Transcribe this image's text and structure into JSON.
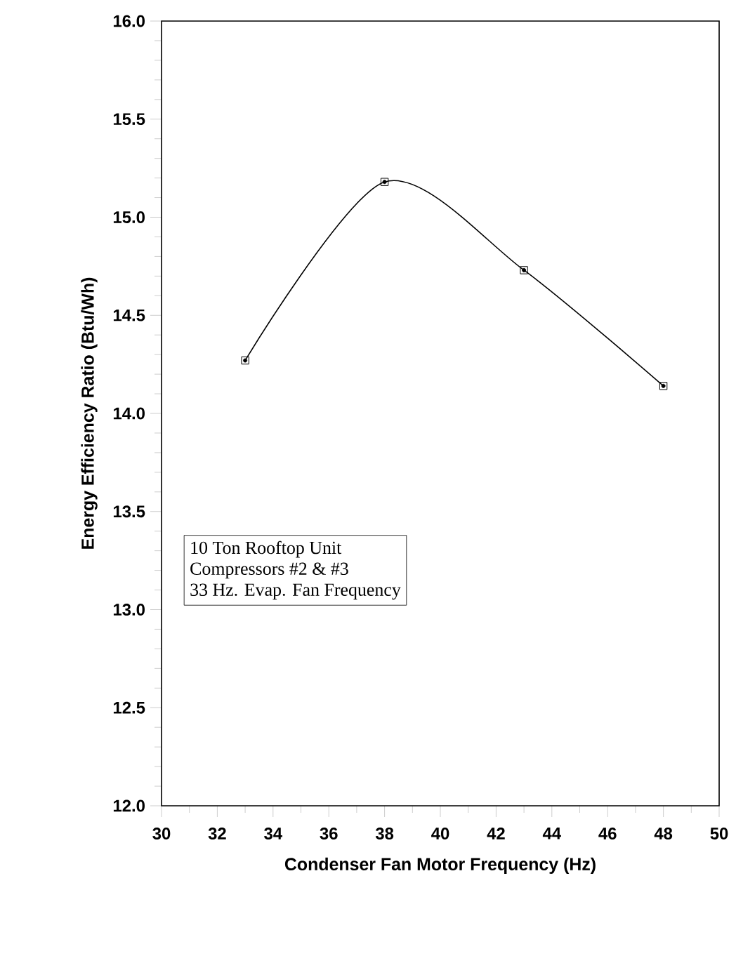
{
  "chart_data": {
    "type": "line",
    "xlabel": "Condenser Fan Motor Frequency (Hz)",
    "ylabel": "Energy Efficiency Ratio (Btu/Wh)",
    "x": [
      33,
      38,
      43,
      48
    ],
    "series": [
      {
        "color": "#000000",
        "values": [
          14.27,
          15.18,
          14.73,
          14.14
        ]
      }
    ],
    "xlim": [
      30,
      50
    ],
    "xticks": [
      30,
      32,
      34,
      36,
      38,
      40,
      42,
      44,
      46,
      48,
      50
    ],
    "ylim": [
      12,
      16
    ],
    "yticks": [
      {
        "value": 12,
        "label": "12.0"
      },
      {
        "value": 12.5,
        "label": "12.5"
      },
      {
        "value": 13,
        "label": "13.0"
      },
      {
        "value": 13.5,
        "label": "13.5"
      },
      {
        "value": 14,
        "label": "14.0"
      },
      {
        "value": 14.5,
        "label": "14.5"
      },
      {
        "value": 15,
        "label": "15.0"
      },
      {
        "value": 15.5,
        "label": "15.5"
      },
      {
        "value": 16,
        "label": "16.0"
      }
    ],
    "marker": "square",
    "line_style": "solid",
    "annotations": [
      "10 Ton Rooftop Unit",
      "Compressors #2 & #3",
      "33 Hz. Evap. Fan Frequency"
    ]
  }
}
